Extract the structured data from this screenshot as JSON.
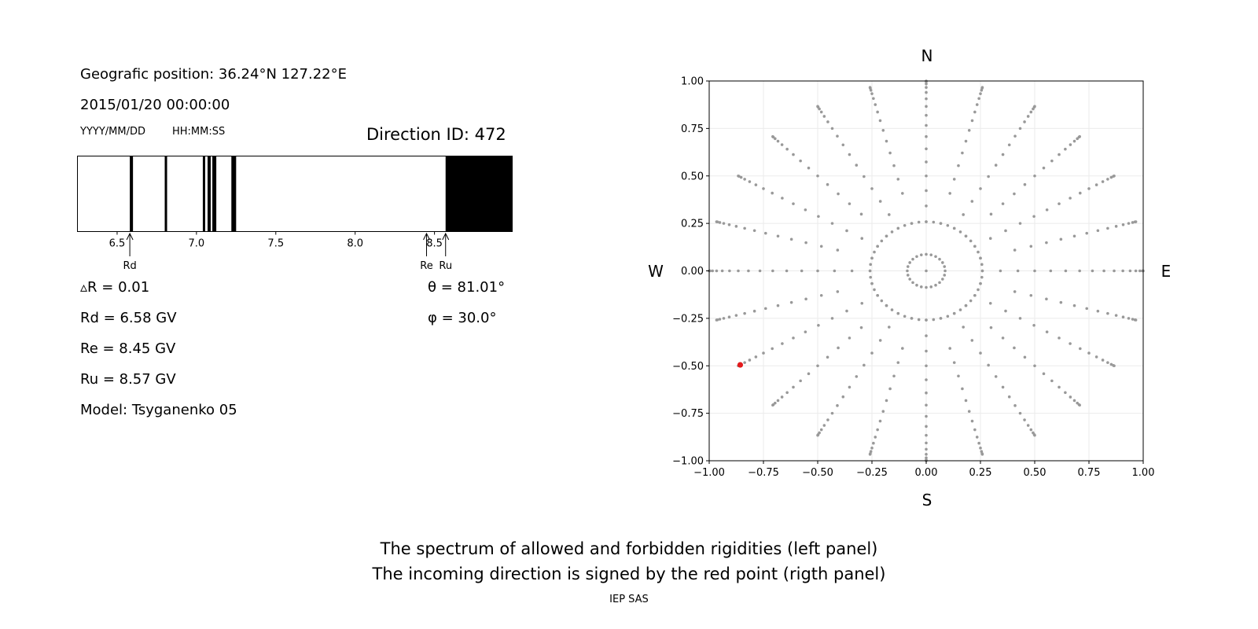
{
  "header": {
    "position": "Geografic position: 36.24°N 127.22°E",
    "datetime": "2015/01/20 00:00:00",
    "date_format": "YYYY/MM/DD",
    "time_format": "HH:MM:SS",
    "direction_id": "Direction ID: 472"
  },
  "markers": {
    "rd": "Rd",
    "re": "Re",
    "ru": "Ru"
  },
  "info": {
    "delta_r": "▵R = 0.01",
    "rd": "Rd = 6.58 GV",
    "re": "Re = 8.45 GV",
    "ru": "Ru = 8.57 GV",
    "model": "Model: Tsyganenko 05",
    "theta": "θ = 81.01°",
    "phi": "φ = 30.0°"
  },
  "compass": {
    "n": "N",
    "s": "S",
    "w": "W",
    "e": "E"
  },
  "captions": {
    "line1": "The spectrum of allowed and forbidden rigidities (left panel)",
    "line2": "The incoming direction is signed by the red point (rigth panel)",
    "footer": "IEP SAS"
  },
  "colors": {
    "forbidden": "#000000",
    "allowed": "#ffffff",
    "grid_points": "#999999",
    "selected": "#e31a1c"
  },
  "chart_data": [
    {
      "type": "heatmap",
      "xlim": [
        6.25,
        8.99
      ],
      "ticks": [
        6.5,
        7.0,
        7.5,
        8.0,
        8.5
      ],
      "tick_labels": [
        "6.5",
        "7.0",
        "7.5",
        "8.0",
        "8.5"
      ],
      "forbidden_bands": [
        [
          6.58,
          6.6
        ],
        [
          6.8,
          6.815
        ],
        [
          7.04,
          7.055
        ],
        [
          7.07,
          7.09
        ],
        [
          7.1,
          7.125
        ],
        [
          7.22,
          7.25
        ],
        [
          8.57,
          8.99
        ]
      ],
      "markers": [
        {
          "label": "Rd",
          "value": 6.58
        },
        {
          "label": "Re",
          "value": 8.45
        },
        {
          "label": "Ru",
          "value": 8.57
        }
      ]
    },
    {
      "type": "scatter",
      "xlim": [
        -1.0,
        1.0
      ],
      "ylim": [
        -1.0,
        1.0
      ],
      "ticks": [
        -1.0,
        -0.75,
        -0.5,
        -0.25,
        0.0,
        0.25,
        0.5,
        0.75,
        1.0
      ],
      "tick_labels": [
        "−1.00",
        "−0.75",
        "−0.50",
        "−0.25",
        "0.00",
        "0.25",
        "0.50",
        "0.75",
        "1.00"
      ],
      "grid": true,
      "rays": 24,
      "theta_step_deg": 5,
      "theta_max_deg": 90,
      "selected": {
        "x": -0.857,
        "y": -0.495
      }
    }
  ]
}
